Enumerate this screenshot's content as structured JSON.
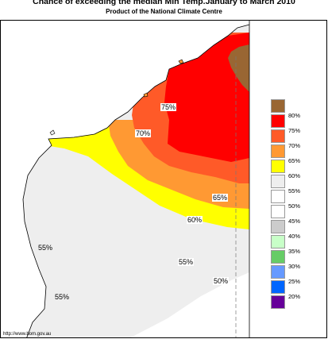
{
  "title": "Chance of exceeding the median Min Temp.January to March 2010",
  "subtitle": "Product of the National Climate Centre",
  "source": "http://www.bom.gov.au",
  "map_labels": {
    "p75": "75%",
    "p70": "70%",
    "p65": "65%",
    "p60": "60%",
    "p55_west": "55%",
    "p55_south": "55%",
    "p55_center": "55%",
    "p50": "50%"
  },
  "legend": [
    {
      "label": "80%",
      "color": "#996633"
    },
    {
      "label": "75%",
      "color": "#ff0000"
    },
    {
      "label": "70%",
      "color": "#ff5a28"
    },
    {
      "label": "65%",
      "color": "#ff9933"
    },
    {
      "label": "60%",
      "color": "#ffff00"
    },
    {
      "label": "55%",
      "color": "#eeeeee"
    },
    {
      "label": "50%",
      "color": "#ffffff"
    },
    {
      "label": "45%",
      "color": "#ffffff"
    },
    {
      "label": "40%",
      "color": "#cccccc"
    },
    {
      "label": "35%",
      "color": "#c8ffc8"
    },
    {
      "label": "30%",
      "color": "#66cc66"
    },
    {
      "label": "25%",
      "color": "#6699ff"
    },
    {
      "label": "20%",
      "color": "#0066ff"
    },
    {
      "label": "",
      "color": "#660099"
    }
  ]
}
